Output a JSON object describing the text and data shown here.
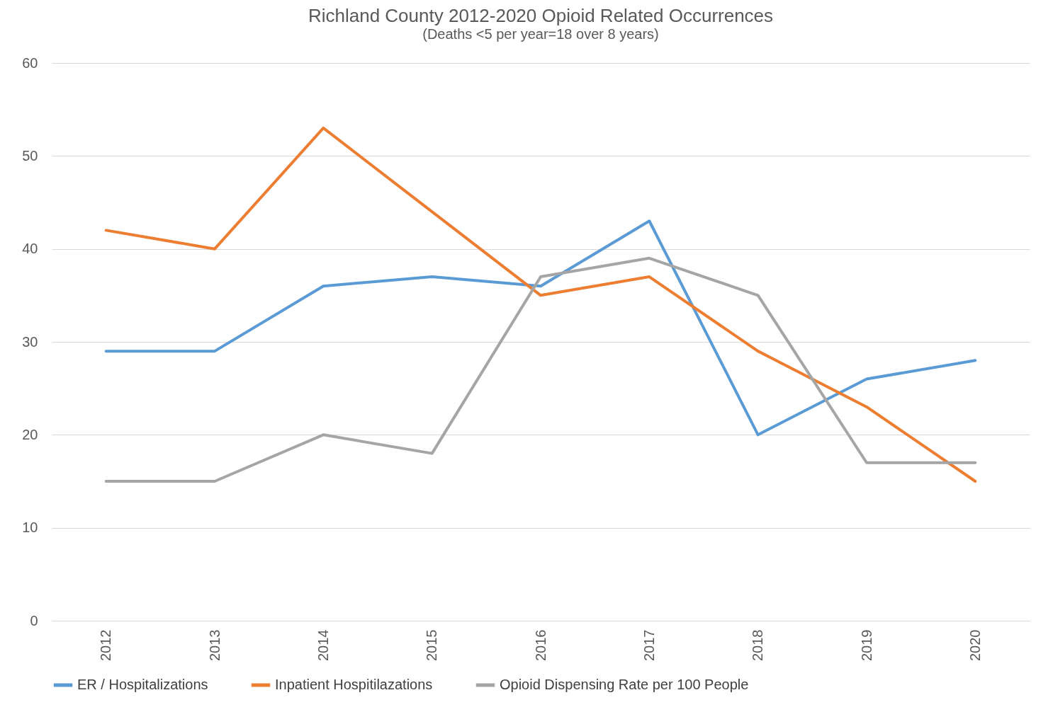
{
  "chart_data": {
    "type": "line",
    "title": "Richland County 2012-2020 Opioid Related Occurrences",
    "subtitle": "(Deaths <5 per year=18 over 8 years)",
    "categories": [
      "2012",
      "2013",
      "2014",
      "2015",
      "2016",
      "2017",
      "2018",
      "2019",
      "2020"
    ],
    "series": [
      {
        "name": "ER / Hospitalizations",
        "color": "#5b9bd5",
        "values": [
          29,
          29,
          36,
          37,
          36,
          43,
          20,
          26,
          28
        ]
      },
      {
        "name": "Inpatient Hospitilazations",
        "color": "#ed7d31",
        "values": [
          42,
          40,
          53,
          44,
          35,
          37,
          29,
          23,
          15
        ]
      },
      {
        "name": "Opioid Dispensing Rate per 100 People",
        "color": "#a5a5a5",
        "values": [
          15,
          15,
          20,
          18,
          37,
          39,
          35,
          17,
          17
        ]
      }
    ],
    "ylim": [
      0,
      60
    ],
    "yticks": [
      0,
      10,
      20,
      30,
      40,
      50,
      60
    ],
    "grid": "y",
    "legend": "bottom"
  }
}
